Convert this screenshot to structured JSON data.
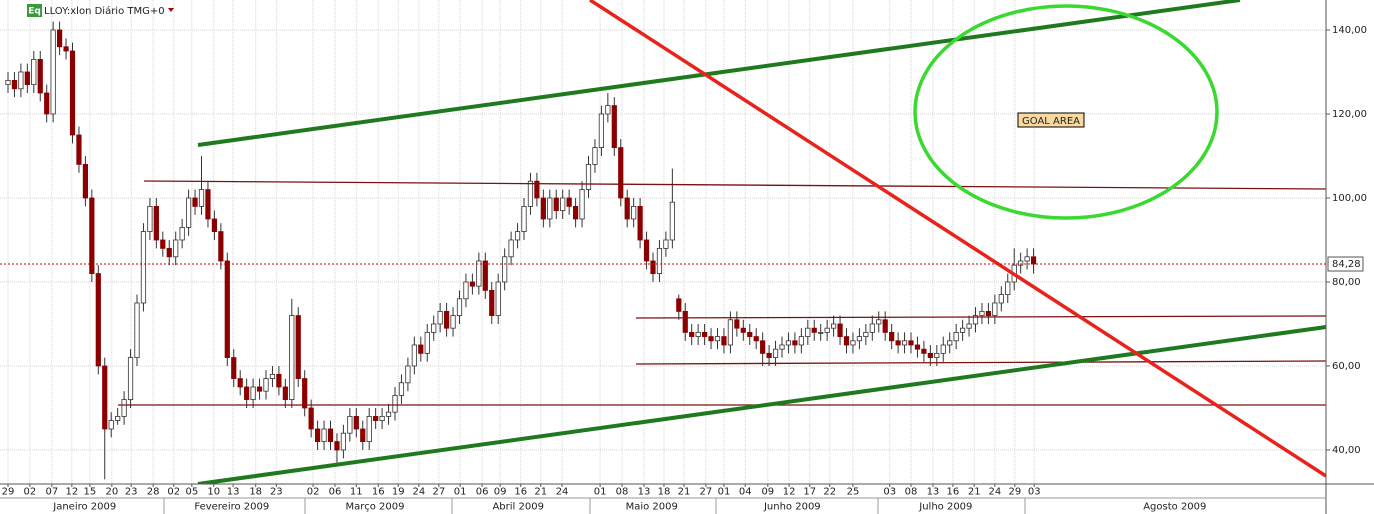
{
  "chart_data": {
    "type": "candlestick",
    "badge": "Eq",
    "title": "LLOY:xlon Diário TMG+0",
    "annotation": "GOAL AREA",
    "up_color": "#ffffff",
    "down_color": "#8b0000",
    "outline_color": "#333333",
    "grid": true,
    "last_price": {
      "value": 84.28,
      "label": "84,28"
    },
    "ylim": [
      31.9,
      147.14
    ],
    "yticks": [
      {
        "value": 40,
        "label": "40,00"
      },
      {
        "value": 60,
        "label": "60,00"
      },
      {
        "value": 80,
        "label": "80,00"
      },
      {
        "value": 100,
        "label": "100,00"
      },
      {
        "value": 120,
        "label": "120,00"
      },
      {
        "value": 140,
        "label": "140,00"
      }
    ],
    "xlim": [
      -1.24,
      204.34
    ],
    "xticks": [
      {
        "value": 0,
        "label": "29"
      },
      {
        "value": 3.4,
        "label": "02"
      },
      {
        "value": 6.8,
        "label": "07"
      },
      {
        "value": 9.9,
        "label": "12"
      },
      {
        "value": 12.7,
        "label": "15"
      },
      {
        "value": 16.1,
        "label": "20"
      },
      {
        "value": 19.1,
        "label": "23"
      },
      {
        "value": 22.5,
        "label": "28"
      },
      {
        "value": 25.7,
        "label": "02"
      },
      {
        "value": 28.5,
        "label": "05"
      },
      {
        "value": 31.9,
        "label": "10"
      },
      {
        "value": 34.9,
        "label": "13"
      },
      {
        "value": 38.4,
        "label": "18"
      },
      {
        "value": 41.6,
        "label": "23"
      },
      {
        "value": 47.3,
        "label": "02"
      },
      {
        "value": 50.7,
        "label": "06"
      },
      {
        "value": 54,
        "label": "11"
      },
      {
        "value": 57.4,
        "label": "16"
      },
      {
        "value": 60.5,
        "label": "19"
      },
      {
        "value": 63.7,
        "label": "24"
      },
      {
        "value": 66.8,
        "label": "27"
      },
      {
        "value": 70.1,
        "label": "01"
      },
      {
        "value": 73.5,
        "label": "06"
      },
      {
        "value": 76.3,
        "label": "09"
      },
      {
        "value": 79.5,
        "label": "16"
      },
      {
        "value": 82.6,
        "label": "21"
      },
      {
        "value": 85.9,
        "label": "24"
      },
      {
        "value": 91.8,
        "label": "01"
      },
      {
        "value": 95.2,
        "label": "08"
      },
      {
        "value": 98.6,
        "label": "13"
      },
      {
        "value": 101.7,
        "label": "18"
      },
      {
        "value": 104.8,
        "label": "21"
      },
      {
        "value": 108.2,
        "label": "27"
      },
      {
        "value": 111,
        "label": "01"
      },
      {
        "value": 114.3,
        "label": "04"
      },
      {
        "value": 117.8,
        "label": "09"
      },
      {
        "value": 121.1,
        "label": "12"
      },
      {
        "value": 124.3,
        "label": "17"
      },
      {
        "value": 127.4,
        "label": "22"
      },
      {
        "value": 131,
        "label": "25"
      },
      {
        "value": 136.7,
        "label": "03"
      },
      {
        "value": 140,
        "label": "08"
      },
      {
        "value": 143.4,
        "label": "13"
      },
      {
        "value": 146.5,
        "label": "16"
      },
      {
        "value": 149.8,
        "label": "21"
      },
      {
        "value": 153,
        "label": "24"
      },
      {
        "value": 156.1,
        "label": "29"
      },
      {
        "value": 159.1,
        "label": "03"
      }
    ],
    "months": [
      {
        "value": 11.9,
        "label": "Janeiro 2009"
      },
      {
        "value": 34.7,
        "label": "Fevereiro 2009"
      },
      {
        "value": 56.9,
        "label": "Março 2009"
      },
      {
        "value": 79.1,
        "label": "Abril 2009"
      },
      {
        "value": 99.8,
        "label": "Maio 2009"
      },
      {
        "value": 121.6,
        "label": "Junho 2009"
      },
      {
        "value": 145.4,
        "label": "Julho 2009"
      },
      {
        "value": 180.9,
        "label": "Agosto 2009"
      }
    ],
    "candles": [
      [
        127,
        130,
        125,
        128
      ],
      [
        128,
        130,
        124,
        126
      ],
      [
        126,
        132,
        124,
        130
      ],
      [
        130,
        132,
        125,
        127
      ],
      [
        127,
        135,
        125,
        133
      ],
      [
        133,
        135,
        123,
        125
      ],
      [
        125,
        127,
        118,
        120
      ],
      [
        120,
        142,
        118,
        140
      ],
      [
        140,
        142,
        134,
        136
      ],
      [
        136,
        138,
        133,
        135
      ],
      [
        135,
        137,
        113,
        115
      ],
      [
        115,
        117,
        106,
        108
      ],
      [
        108,
        110,
        98,
        100
      ],
      [
        100,
        102,
        80,
        82
      ],
      [
        82,
        84,
        58,
        60
      ],
      [
        60,
        62,
        33,
        45
      ],
      [
        45,
        49,
        43,
        47
      ],
      [
        47,
        50,
        46,
        48
      ],
      [
        48,
        54,
        46,
        52
      ],
      [
        52,
        64,
        50,
        62
      ],
      [
        62,
        77,
        60,
        75
      ],
      [
        75,
        94,
        73,
        92
      ],
      [
        92,
        100,
        90,
        98
      ],
      [
        98,
        100,
        88,
        90
      ],
      [
        90,
        92,
        86,
        88
      ],
      [
        88,
        90,
        84,
        86
      ],
      [
        86,
        92,
        84,
        90
      ],
      [
        90,
        95,
        88,
        93
      ],
      [
        93,
        102,
        91,
        100
      ],
      [
        100,
        102,
        96,
        98
      ],
      [
        98,
        110,
        96,
        102
      ],
      [
        102,
        104,
        93,
        95
      ],
      [
        95,
        97,
        90,
        92
      ],
      [
        92,
        94,
        83,
        85
      ],
      [
        85,
        87,
        60,
        62
      ],
      [
        62,
        64,
        55,
        57
      ],
      [
        57,
        59,
        53,
        55
      ],
      [
        55,
        57,
        50,
        52
      ],
      [
        52,
        57,
        50,
        55
      ],
      [
        55,
        57,
        52,
        54
      ],
      [
        54,
        59,
        52,
        57
      ],
      [
        57,
        60,
        55,
        58
      ],
      [
        58,
        60,
        53,
        55
      ],
      [
        55,
        57,
        50,
        52
      ],
      [
        52,
        76,
        50,
        72
      ],
      [
        72,
        74,
        55,
        57
      ],
      [
        57,
        59,
        48,
        50
      ],
      [
        50,
        52,
        43,
        45
      ],
      [
        45,
        47,
        40,
        42
      ],
      [
        42,
        47,
        40,
        45
      ],
      [
        45,
        47,
        40,
        42
      ],
      [
        42,
        44,
        37,
        40
      ],
      [
        40,
        46,
        38,
        44
      ],
      [
        44,
        50,
        42,
        48
      ],
      [
        48,
        50,
        43,
        45
      ],
      [
        45,
        47,
        40,
        42
      ],
      [
        42,
        50,
        40,
        48
      ],
      [
        48,
        50,
        45,
        47
      ],
      [
        47,
        50,
        45,
        48
      ],
      [
        48,
        51,
        46,
        49
      ],
      [
        49,
        55,
        47,
        53
      ],
      [
        53,
        58,
        51,
        56
      ],
      [
        56,
        62,
        54,
        60
      ],
      [
        60,
        67,
        58,
        65
      ],
      [
        65,
        67,
        61,
        63
      ],
      [
        63,
        70,
        61,
        68
      ],
      [
        68,
        72,
        66,
        70
      ],
      [
        70,
        75,
        68,
        73
      ],
      [
        73,
        75,
        67,
        69
      ],
      [
        69,
        74,
        67,
        72
      ],
      [
        72,
        78,
        70,
        76
      ],
      [
        76,
        82,
        74,
        80
      ],
      [
        80,
        82,
        77,
        79
      ],
      [
        79,
        87,
        77,
        85
      ],
      [
        85,
        87,
        76,
        78
      ],
      [
        78,
        80,
        70,
        72
      ],
      [
        72,
        82,
        70,
        80
      ],
      [
        80,
        88,
        78,
        86
      ],
      [
        86,
        92,
        84,
        90
      ],
      [
        90,
        94,
        88,
        92
      ],
      [
        92,
        100,
        90,
        98
      ],
      [
        98,
        106,
        96,
        104
      ],
      [
        104,
        106,
        98,
        100
      ],
      [
        100,
        102,
        93,
        95
      ],
      [
        95,
        102,
        93,
        100
      ],
      [
        100,
        102,
        95,
        97
      ],
      [
        97,
        102,
        95,
        100
      ],
      [
        100,
        102,
        96,
        98
      ],
      [
        98,
        100,
        93,
        95
      ],
      [
        95,
        104,
        93,
        102
      ],
      [
        102,
        110,
        100,
        108
      ],
      [
        108,
        114,
        106,
        112
      ],
      [
        112,
        122,
        110,
        120
      ],
      [
        120,
        125,
        118,
        122
      ],
      [
        122,
        124,
        110,
        112
      ],
      [
        112,
        114,
        98,
        100
      ],
      [
        100,
        102,
        93,
        95
      ],
      [
        95,
        100,
        93,
        98
      ],
      [
        98,
        100,
        88,
        90
      ],
      [
        90,
        92,
        83,
        85
      ],
      [
        85,
        87,
        80,
        82
      ],
      [
        82,
        90,
        80,
        88
      ],
      [
        88,
        92,
        86,
        90
      ],
      [
        90,
        107,
        88,
        99
      ],
      [
        76,
        77,
        71,
        73
      ],
      [
        73,
        75,
        66,
        68
      ],
      [
        68,
        70,
        65,
        67
      ],
      [
        67,
        70,
        65,
        68
      ],
      [
        68,
        70,
        65,
        67
      ],
      [
        67,
        69,
        64,
        66
      ],
      [
        66,
        69,
        64,
        67
      ],
      [
        67,
        69,
        63,
        65
      ],
      [
        65,
        73,
        63,
        71
      ],
      [
        71,
        73,
        67,
        69
      ],
      [
        69,
        71,
        66,
        68
      ],
      [
        68,
        70,
        65,
        67
      ],
      [
        67,
        69,
        64,
        66
      ],
      [
        66,
        68,
        60,
        63
      ],
      [
        63,
        65,
        60,
        62
      ],
      [
        62,
        66,
        60,
        64
      ],
      [
        64,
        67,
        62,
        65
      ],
      [
        65,
        68,
        63,
        66
      ],
      [
        66,
        68,
        63,
        65
      ],
      [
        65,
        69,
        63,
        67
      ],
      [
        67,
        71,
        65,
        69
      ],
      [
        69,
        71,
        66,
        68
      ],
      [
        68,
        70,
        66,
        68
      ],
      [
        68,
        71,
        66,
        69
      ],
      [
        69,
        72,
        67,
        70
      ],
      [
        70,
        72,
        65,
        67
      ],
      [
        67,
        69,
        63,
        65
      ],
      [
        65,
        68,
        63,
        66
      ],
      [
        66,
        69,
        64,
        67
      ],
      [
        67,
        70,
        65,
        68
      ],
      [
        68,
        72,
        66,
        70
      ],
      [
        70,
        73,
        68,
        71
      ],
      [
        71,
        73,
        66,
        68
      ],
      [
        68,
        70,
        64,
        66
      ],
      [
        66,
        68,
        63,
        65
      ],
      [
        65,
        68,
        63,
        66
      ],
      [
        66,
        68,
        63,
        65
      ],
      [
        65,
        67,
        62,
        64
      ],
      [
        64,
        66,
        61,
        63
      ],
      [
        63,
        65,
        60,
        62
      ],
      [
        62,
        65,
        60,
        63
      ],
      [
        63,
        67,
        61,
        65
      ],
      [
        65,
        68,
        63,
        66
      ],
      [
        66,
        70,
        64,
        68
      ],
      [
        68,
        71,
        66,
        69
      ],
      [
        69,
        72,
        67,
        70
      ],
      [
        70,
        74,
        68,
        72
      ],
      [
        72,
        75,
        70,
        73
      ],
      [
        73,
        75,
        70,
        72
      ],
      [
        72,
        77,
        70,
        75
      ],
      [
        75,
        79,
        73,
        77
      ],
      [
        77,
        82,
        75,
        80
      ],
      [
        80,
        88,
        78,
        84
      ],
      [
        84,
        87,
        82,
        85
      ],
      [
        85,
        88,
        83,
        86
      ],
      [
        86,
        88,
        82,
        84.28
      ]
    ]
  }
}
